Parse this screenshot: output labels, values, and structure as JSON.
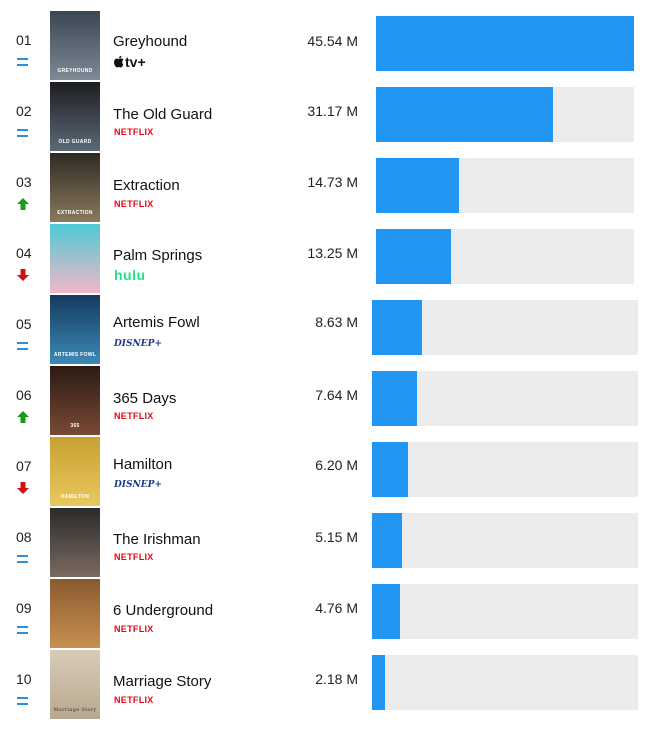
{
  "rankings": [
    {
      "rank": "01",
      "trend": "same",
      "title": "Greyhound",
      "service": "tv+",
      "service_type": "appletv",
      "value_label": "45.54 M",
      "viewers_m": 45.54,
      "poster_colors": [
        "#3a4652",
        "#7d8a95"
      ]
    },
    {
      "rank": "02",
      "trend": "same",
      "title": "The Old Guard",
      "service": "NETFLIX",
      "service_type": "netflix",
      "value_label": "31.17 M",
      "viewers_m": 31.17,
      "poster_colors": [
        "#1d1d22",
        "#5a6a78"
      ]
    },
    {
      "rank": "03",
      "trend": "up",
      "title": "Extraction",
      "service": "NETFLIX",
      "service_type": "netflix",
      "value_label": "14.73 M",
      "viewers_m": 14.73,
      "poster_colors": [
        "#2e2a24",
        "#8a7a5c"
      ]
    },
    {
      "rank": "04",
      "trend": "down",
      "title": "Palm Springs",
      "service": "hulu",
      "service_type": "hulu",
      "value_label": "13.25 M",
      "viewers_m": 13.25,
      "poster_colors": [
        "#4ec9d4",
        "#f2b7c8"
      ]
    },
    {
      "rank": "05",
      "trend": "same",
      "title": "Artemis Fowl",
      "service": "DISNEP+",
      "service_type": "disney",
      "value_label": "8.63 M",
      "viewers_m": 8.63,
      "poster_colors": [
        "#123a5c",
        "#3c8ab8"
      ]
    },
    {
      "rank": "06",
      "trend": "up",
      "title": "365 Days",
      "service": "NETFLIX",
      "service_type": "netflix",
      "value_label": "7.64 M",
      "viewers_m": 7.64,
      "poster_colors": [
        "#2a1a14",
        "#7a4a34"
      ]
    },
    {
      "rank": "07",
      "trend": "down",
      "title": "Hamilton",
      "service": "DISNEP+",
      "service_type": "disney",
      "value_label": "6.20 M",
      "viewers_m": 6.2,
      "poster_colors": [
        "#c8a030",
        "#e8c860"
      ]
    },
    {
      "rank": "08",
      "trend": "same",
      "title": "The Irishman",
      "service": "NETFLIX",
      "service_type": "netflix",
      "value_label": "5.15 M",
      "viewers_m": 5.15,
      "poster_colors": [
        "#2b2b2b",
        "#7a6a60"
      ]
    },
    {
      "rank": "09",
      "trend": "same",
      "title": "6 Underground",
      "service": "NETFLIX",
      "service_type": "netflix",
      "value_label": "4.76 M",
      "viewers_m": 4.76,
      "poster_colors": [
        "#8a5a30",
        "#c89050"
      ]
    },
    {
      "rank": "10",
      "trend": "same",
      "title": "Marriage Story",
      "service": "NETFLIX",
      "service_type": "netflix",
      "value_label": "2.18 M",
      "viewers_m": 2.18,
      "poster_colors": [
        "#d8ccb8",
        "#b8a890"
      ]
    }
  ],
  "poster_texts": [
    "GREYHOUND",
    "OLD GUARD",
    "EXTRACTION",
    "",
    "ARTEMIS FOWL",
    "365",
    "HAMILTON",
    "",
    "",
    "Marriage Story"
  ],
  "colors": {
    "bar": "#2196f3",
    "track": "#ececec",
    "up": "#1a9a1a",
    "down": "#d01010",
    "same": "#2a8fe0"
  }
}
